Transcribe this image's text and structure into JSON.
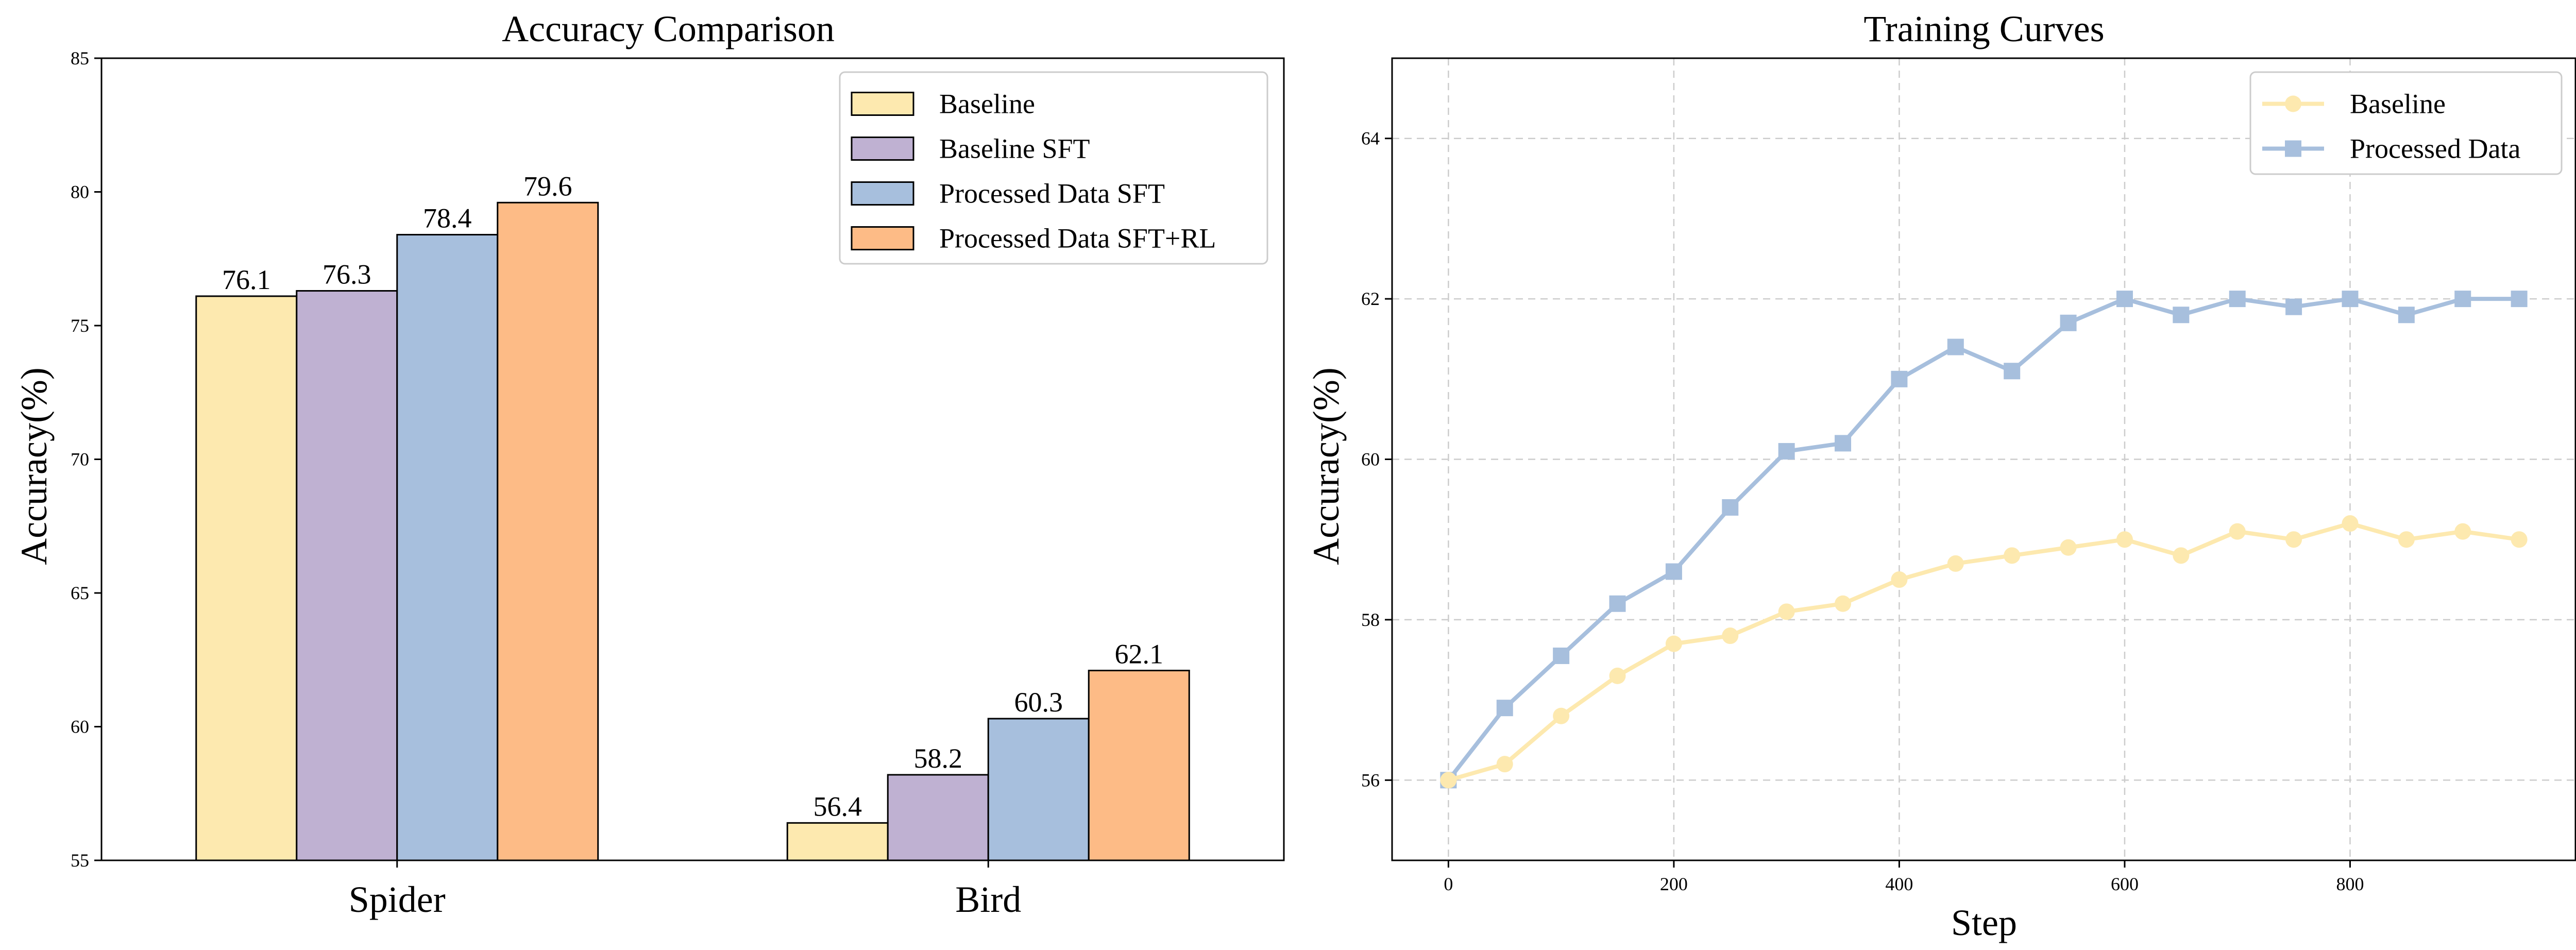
{
  "chart_data": [
    {
      "type": "bar",
      "title": "Accuracy Comparison",
      "xlabel": "",
      "ylabel": "Accuracy(%)",
      "ylim": [
        55,
        85
      ],
      "yticks": [
        55,
        60,
        65,
        70,
        75,
        80,
        85
      ],
      "categories": [
        "Spider",
        "Bird"
      ],
      "grid": false,
      "legend_position": "top-right",
      "series": [
        {
          "name": "Baseline",
          "values": [
            76.1,
            56.4
          ],
          "color": "#fde9af"
        },
        {
          "name": "Baseline SFT",
          "values": [
            76.3,
            58.2
          ],
          "color": "#bfb1d2"
        },
        {
          "name": "Processed Data SFT",
          "values": [
            78.4,
            60.3
          ],
          "color": "#a7bfdd"
        },
        {
          "name": "Processed Data SFT+RL",
          "values": [
            79.6,
            62.1
          ],
          "color": "#fdbb86"
        }
      ]
    },
    {
      "type": "line",
      "title": "Training Curves",
      "xlabel": "Step",
      "ylabel": "Accuracy(%)",
      "xlim": [
        -50,
        1000
      ],
      "ylim": [
        55,
        65
      ],
      "xticks": [
        0,
        200,
        400,
        600,
        800
      ],
      "yticks": [
        56,
        58,
        60,
        62,
        64
      ],
      "grid": true,
      "legend_position": "top-right",
      "x": [
        0,
        50,
        100,
        150,
        200,
        250,
        300,
        350,
        400,
        450,
        500,
        550,
        600,
        650,
        700,
        750,
        800,
        850,
        900,
        950
      ],
      "series": [
        {
          "name": "Baseline",
          "marker": "circle",
          "color": "#fde9af",
          "values": [
            56.0,
            56.2,
            56.8,
            57.3,
            57.7,
            57.8,
            58.1,
            58.2,
            58.5,
            58.7,
            58.8,
            58.9,
            59.0,
            58.8,
            59.1,
            59.0,
            59.2,
            59.0,
            59.1,
            59.0
          ]
        },
        {
          "name": "Processed Data",
          "marker": "square",
          "color": "#a7bfdd",
          "values": [
            56.0,
            56.9,
            57.55,
            58.2,
            58.6,
            59.4,
            60.1,
            60.2,
            61.0,
            61.4,
            61.1,
            61.7,
            62.0,
            61.8,
            62.0,
            61.9,
            62.0,
            61.8,
            62.0,
            62.0
          ]
        }
      ]
    }
  ]
}
